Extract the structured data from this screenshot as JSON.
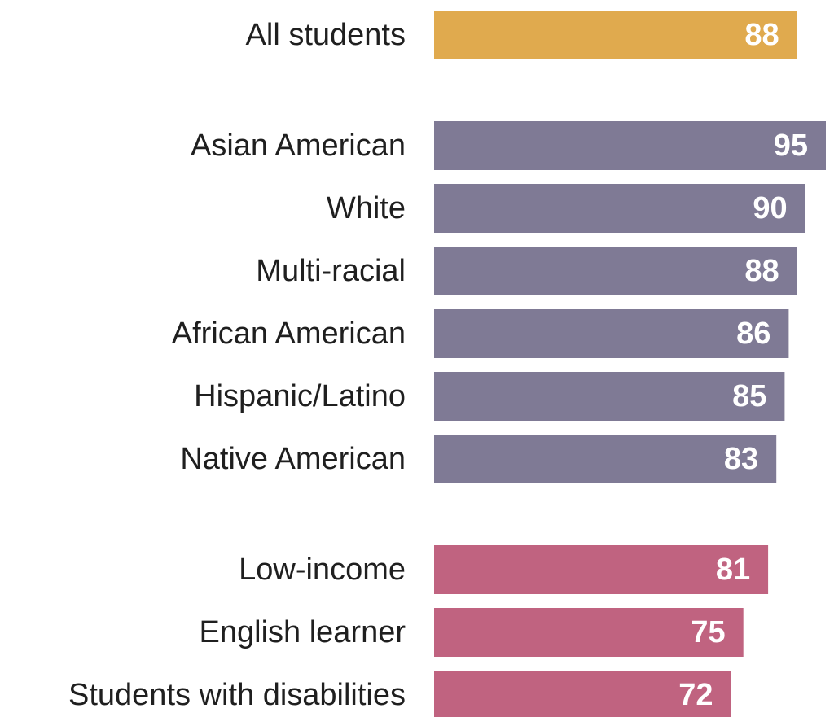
{
  "chart_data": {
    "type": "bar",
    "orientation": "horizontal",
    "title": "",
    "xlabel": "",
    "ylabel": "",
    "xlim": [
      0,
      95
    ],
    "grid": false,
    "legend": "none",
    "categories": [
      "All students",
      "Asian American",
      "White",
      "Multi-racial",
      "African American",
      "Hispanic/Latino",
      "Native American",
      "Low-income",
      "English learner",
      "Students with disabilities"
    ],
    "values": [
      88,
      95,
      90,
      88,
      86,
      85,
      83,
      81,
      75,
      72
    ],
    "groups": [
      0,
      1,
      1,
      1,
      1,
      1,
      1,
      2,
      2,
      2
    ],
    "group_colors": [
      "#E0AA4E",
      "#7F7A95",
      "#C06380"
    ]
  }
}
